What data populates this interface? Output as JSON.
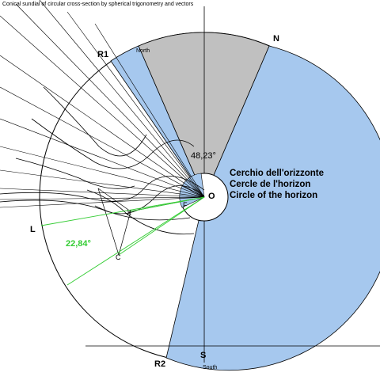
{
  "title": "Conical sundial of circular cross-section by spherical trigonometry and vectors",
  "labels": {
    "north": "N",
    "r1": "R1",
    "north_small": "North",
    "r2": "R2",
    "south": "S",
    "south_small": "South",
    "origin": "O",
    "left": "L",
    "point_c": "C",
    "point_x": "X",
    "point_f": "F"
  },
  "angles": {
    "north_angle": "48,23°",
    "side_angle": "22,84°"
  },
  "legend": [
    "Cerchio dell'orizzonte",
    "Cercle de l'horizon",
    "Circle of the horizon"
  ],
  "colors": {
    "blue_sector": "#a6c8ee",
    "gray_sector": "#c0c0c0",
    "green_lines": "#33cc33",
    "line": "#000000"
  }
}
